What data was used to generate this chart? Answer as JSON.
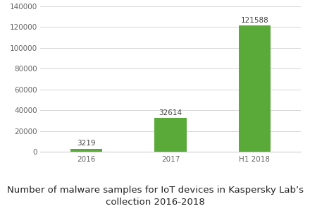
{
  "categories": [
    "2016",
    "2017",
    "H1 2018"
  ],
  "values": [
    3219,
    32614,
    121588
  ],
  "bar_color": "#5aaa3a",
  "bar_width": 0.38,
  "ylim": [
    0,
    140000
  ],
  "yticks": [
    0,
    20000,
    40000,
    60000,
    80000,
    100000,
    120000,
    140000
  ],
  "title_line1": "Number of malware samples for IoT devices in Kaspersky Lab’s",
  "title_line2": "collection 2016-2018",
  "title_fontsize": 9.5,
  "label_fontsize": 7.5,
  "tick_fontsize": 7.5,
  "background_color": "#ffffff",
  "grid_color": "#d0d0d0"
}
